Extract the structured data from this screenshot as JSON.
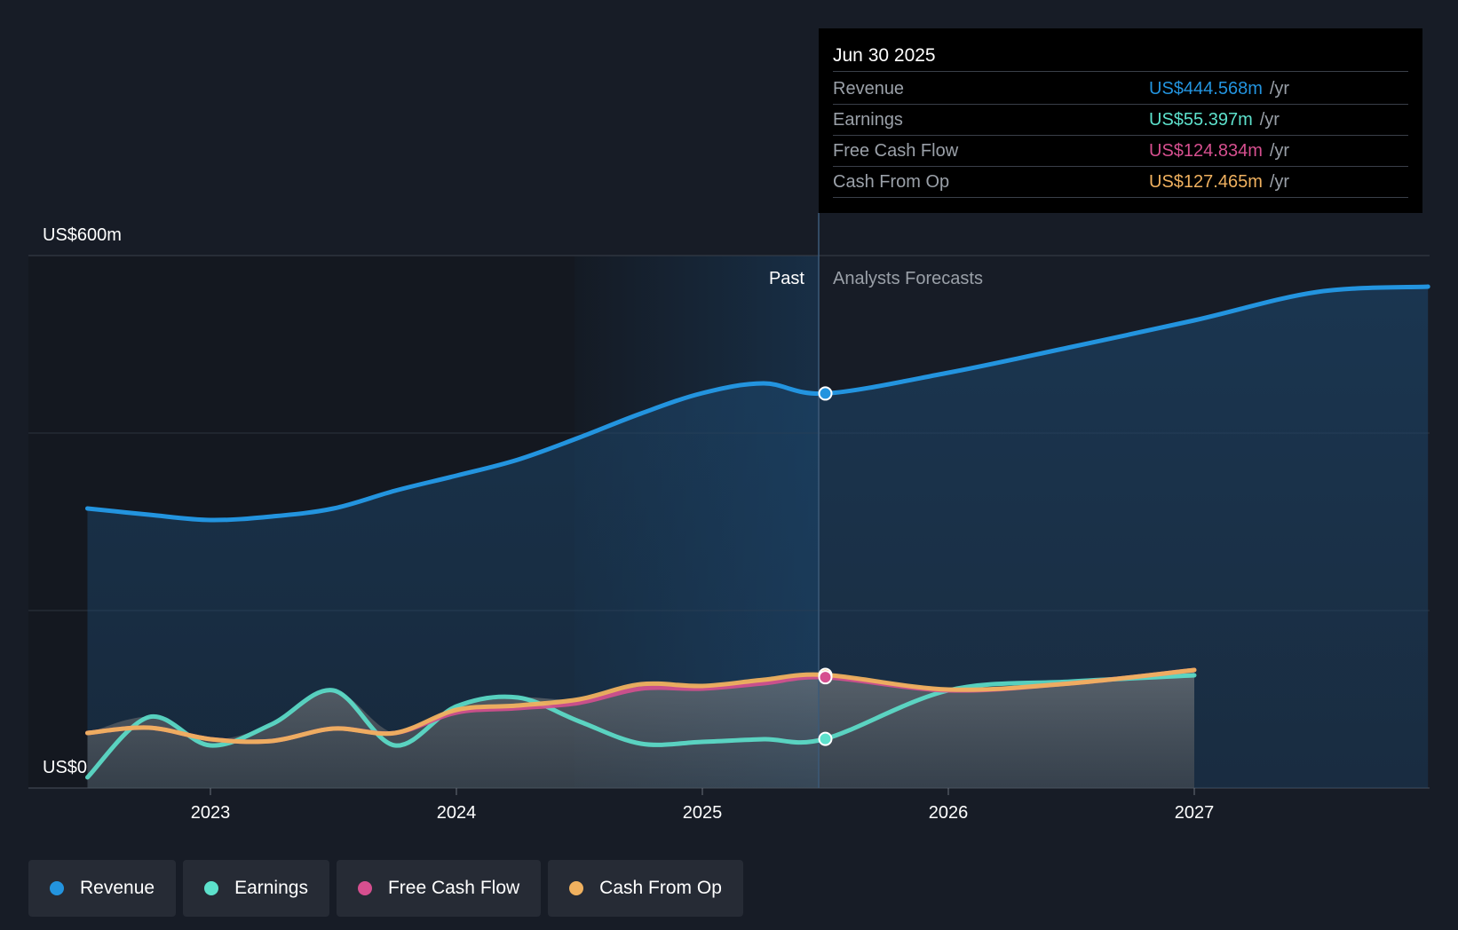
{
  "chart_data": {
    "type": "area",
    "y_axis": {
      "top_label": "US$600m",
      "bottom_label": "US$0",
      "ylim": [
        0,
        600
      ]
    },
    "x_ticks": [
      "2023",
      "2024",
      "2025",
      "2026",
      "2027"
    ],
    "regions": {
      "past_label": "Past",
      "forecast_label": "Analysts Forecasts"
    },
    "series": [
      {
        "name": "Revenue",
        "color": "#2394df",
        "points": [
          [
            2022.5,
            315
          ],
          [
            2022.75,
            308
          ],
          [
            2023.0,
            302
          ],
          [
            2023.25,
            306
          ],
          [
            2023.5,
            315
          ],
          [
            2023.75,
            335
          ],
          [
            2024.0,
            352
          ],
          [
            2024.25,
            370
          ],
          [
            2024.5,
            395
          ],
          [
            2024.75,
            422
          ],
          [
            2025.0,
            445
          ],
          [
            2025.25,
            456
          ],
          [
            2025.5,
            444.568
          ],
          [
            2026.0,
            468
          ],
          [
            2026.5,
            497
          ],
          [
            2027.0,
            527
          ],
          [
            2027.5,
            559
          ],
          [
            2027.95,
            565
          ]
        ]
      },
      {
        "name": "Earnings",
        "color": "#5de1cc",
        "points": [
          [
            2022.5,
            12
          ],
          [
            2022.75,
            80
          ],
          [
            2023.0,
            48
          ],
          [
            2023.25,
            72
          ],
          [
            2023.5,
            110
          ],
          [
            2023.75,
            48
          ],
          [
            2024.0,
            92
          ],
          [
            2024.25,
            102
          ],
          [
            2024.5,
            75
          ],
          [
            2024.75,
            50
          ],
          [
            2025.0,
            52
          ],
          [
            2025.25,
            55
          ],
          [
            2025.5,
            55.397
          ],
          [
            2026.0,
            110
          ],
          [
            2026.5,
            120
          ],
          [
            2027.0,
            127
          ]
        ]
      },
      {
        "name": "Free Cash Flow",
        "color": "#d64f8f",
        "points": [
          [
            2022.5,
            62
          ],
          [
            2022.75,
            68
          ],
          [
            2023.0,
            55
          ],
          [
            2023.25,
            53
          ],
          [
            2023.5,
            67
          ],
          [
            2023.75,
            62
          ],
          [
            2024.0,
            85
          ],
          [
            2024.25,
            90
          ],
          [
            2024.5,
            96
          ],
          [
            2024.75,
            112
          ],
          [
            2025.0,
            112
          ],
          [
            2025.25,
            118
          ],
          [
            2025.5,
            124.834
          ],
          [
            2026.0,
            110
          ],
          [
            2026.5,
            118
          ],
          [
            2027.0,
            133
          ]
        ]
      },
      {
        "name": "Cash From Op",
        "color": "#f0b15f",
        "points": [
          [
            2022.5,
            62
          ],
          [
            2022.75,
            68
          ],
          [
            2023.0,
            55
          ],
          [
            2023.25,
            53
          ],
          [
            2023.5,
            67
          ],
          [
            2023.75,
            62
          ],
          [
            2024.0,
            88
          ],
          [
            2024.25,
            93
          ],
          [
            2024.5,
            100
          ],
          [
            2024.75,
            117
          ],
          [
            2025.0,
            115
          ],
          [
            2025.25,
            122
          ],
          [
            2025.5,
            127.465
          ],
          [
            2026.0,
            111
          ],
          [
            2026.5,
            118
          ],
          [
            2027.0,
            133
          ]
        ]
      }
    ],
    "tooltip": {
      "date": "Jun 30 2025",
      "rows": [
        {
          "label": "Revenue",
          "value": "US$444.568m",
          "unit": "/yr",
          "color": "#2394df"
        },
        {
          "label": "Earnings",
          "value": "US$55.397m",
          "unit": "/yr",
          "color": "#5de1cc"
        },
        {
          "label": "Free Cash Flow",
          "value": "US$124.834m",
          "unit": "/yr",
          "color": "#d64f8f"
        },
        {
          "label": "Cash From Op",
          "value": "US$127.465m",
          "unit": "/yr",
          "color": "#f0b15f"
        }
      ]
    }
  },
  "legend": [
    {
      "label": "Revenue",
      "color": "#2394df"
    },
    {
      "label": "Earnings",
      "color": "#5de1cc"
    },
    {
      "label": "Free Cash Flow",
      "color": "#d64f8f"
    },
    {
      "label": "Cash From Op",
      "color": "#f0b15f"
    }
  ]
}
